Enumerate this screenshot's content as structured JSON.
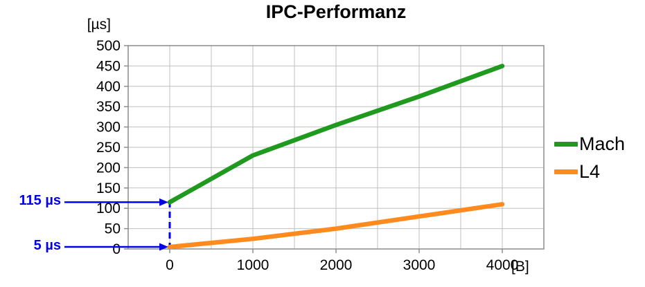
{
  "chart_data": {
    "type": "line",
    "title": "IPC-Performanz",
    "y_unit_label": "[µs]",
    "x_unit_label": "[B]",
    "xlim": [
      -500,
      4500
    ],
    "ylim": [
      0,
      500
    ],
    "x_grid_step": 500,
    "y_grid_step": 50,
    "x_ticks": [
      0,
      1000,
      2000,
      3000,
      4000
    ],
    "y_ticks": [
      0,
      50,
      100,
      150,
      200,
      250,
      300,
      350,
      400,
      450,
      500
    ],
    "grid_color": "#bfbfbf",
    "axis_color": "#8c8c8c",
    "grid_on": true,
    "legend_position": "right",
    "x": [
      0,
      1000,
      2000,
      3000,
      4000
    ],
    "series": [
      {
        "name": "Mach",
        "color": "#1f9a1f",
        "values": [
          115,
          230,
          305,
          375,
          450
        ]
      },
      {
        "name": "L4",
        "color": "#ff8a1e",
        "values": [
          5,
          25,
          50,
          80,
          110
        ]
      }
    ],
    "annotations": [
      {
        "label": "115 µs",
        "x": 0,
        "y": 115,
        "color": "#0000ee"
      },
      {
        "label": "5 µs",
        "x": 0,
        "y": 5,
        "color": "#0000ee"
      }
    ],
    "dashed_guide": {
      "x": 0,
      "y_from": 0,
      "y_to": 115,
      "color": "#0000ee"
    }
  }
}
